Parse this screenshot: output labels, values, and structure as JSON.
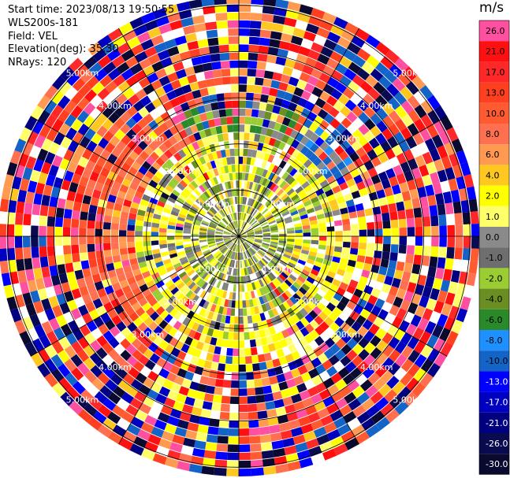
{
  "header": {
    "start_time": "Start time: 2023/08/13 19:50:55",
    "instrument": "WLS200s-181",
    "field": "Field: VEL",
    "elevation": "Elevation(deg): 35.30",
    "nrays": "NRays: 120"
  },
  "chart_data": {
    "type": "heatmap",
    "projection": "polar",
    "field": "VEL",
    "nrays": 120,
    "colorbar": {
      "title": "m/s",
      "ticks": [
        "26.0",
        "21.0",
        "17.0",
        "13.0",
        "10.0",
        "8.0",
        "6.0",
        "4.0",
        "2.0",
        "1.0",
        "0.0",
        "-1.0",
        "-2.0",
        "-4.0",
        "-6.0",
        "-8.0",
        "-10.0",
        "-13.0",
        "-17.0",
        "-21.0",
        "-26.0",
        "-30.0"
      ],
      "colors": [
        "#ff4fa0",
        "#ff1010",
        "#ff2828",
        "#ff4020",
        "#ff5a30",
        "#ff7050",
        "#ff9a50",
        "#ffc820",
        "#ffff00",
        "#ffff6a",
        "#8a8a8a",
        "#6e6e6e",
        "#9acd32",
        "#6b8e23",
        "#2a8a2a",
        "#1e90ff",
        "#1464c8",
        "#0000ff",
        "#0000c0",
        "#000080",
        "#0a0a50",
        "#0a0a30"
      ]
    },
    "range_rings": [
      "1.00km",
      "2.00km",
      "3.00km",
      "4.00km",
      "5.00km"
    ],
    "range_ring_km": [
      1,
      2,
      3,
      4,
      5
    ],
    "grid": true
  }
}
